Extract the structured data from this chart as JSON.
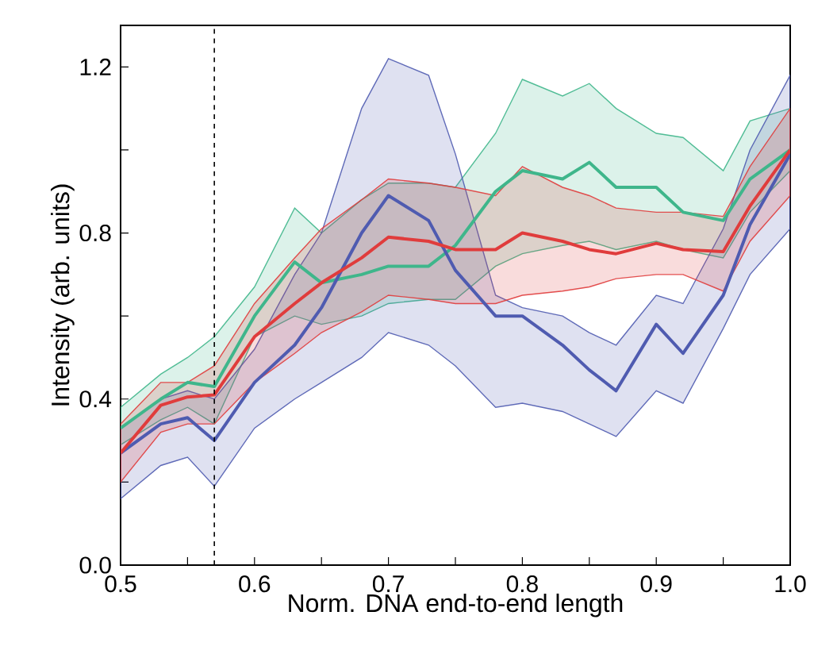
{
  "chart_data": {
    "type": "line",
    "xlabel": "Norm. DNA end-to-end length",
    "ylabel": "Intensity (arb. units)",
    "x": [
      0.5,
      0.53,
      0.55,
      0.57,
      0.6,
      0.63,
      0.65,
      0.68,
      0.7,
      0.73,
      0.75,
      0.78,
      0.8,
      0.83,
      0.85,
      0.87,
      0.9,
      0.92,
      0.95,
      0.97,
      1.0
    ],
    "series": [
      {
        "color": "#3fb68b",
        "values": [
          0.33,
          0.4,
          0.44,
          0.43,
          0.6,
          0.73,
          0.68,
          0.7,
          0.72,
          0.72,
          0.77,
          0.9,
          0.95,
          0.93,
          0.97,
          0.91,
          0.91,
          0.85,
          0.83,
          0.93,
          1.0
        ],
        "upper": [
          0.38,
          0.46,
          0.5,
          0.55,
          0.67,
          0.86,
          0.8,
          0.88,
          0.92,
          0.92,
          0.91,
          1.04,
          1.17,
          1.13,
          1.16,
          1.1,
          1.04,
          1.03,
          0.95,
          1.07,
          1.1
        ],
        "lower": [
          0.29,
          0.35,
          0.38,
          0.34,
          0.55,
          0.6,
          0.58,
          0.6,
          0.63,
          0.64,
          0.64,
          0.72,
          0.75,
          0.77,
          0.78,
          0.76,
          0.78,
          0.76,
          0.74,
          0.85,
          0.95
        ]
      },
      {
        "color": "#4f5bb0",
        "values": [
          0.27,
          0.34,
          0.355,
          0.3,
          0.44,
          0.53,
          0.62,
          0.8,
          0.89,
          0.83,
          0.71,
          0.6,
          0.6,
          0.53,
          0.47,
          0.42,
          0.58,
          0.51,
          0.65,
          0.82,
          0.99
        ],
        "upper": [
          0.33,
          0.4,
          0.42,
          0.4,
          0.52,
          0.7,
          0.8,
          1.1,
          1.22,
          1.18,
          0.99,
          0.65,
          0.62,
          0.6,
          0.56,
          0.53,
          0.65,
          0.63,
          0.81,
          1.0,
          1.18
        ],
        "lower": [
          0.16,
          0.24,
          0.26,
          0.19,
          0.33,
          0.4,
          0.44,
          0.5,
          0.56,
          0.53,
          0.48,
          0.38,
          0.39,
          0.37,
          0.34,
          0.31,
          0.42,
          0.39,
          0.57,
          0.7,
          0.81
        ]
      },
      {
        "color": "#e03c3c",
        "values": [
          0.27,
          0.385,
          0.405,
          0.41,
          0.55,
          0.63,
          0.68,
          0.74,
          0.79,
          0.78,
          0.76,
          0.76,
          0.8,
          0.78,
          0.76,
          0.75,
          0.775,
          0.76,
          0.755,
          0.865,
          1.0
        ],
        "upper": [
          0.34,
          0.44,
          0.44,
          0.48,
          0.63,
          0.74,
          0.81,
          0.88,
          0.93,
          0.92,
          0.91,
          0.89,
          0.96,
          0.91,
          0.89,
          0.86,
          0.85,
          0.85,
          0.84,
          0.96,
          1.1
        ],
        "lower": [
          0.2,
          0.32,
          0.34,
          0.34,
          0.44,
          0.51,
          0.56,
          0.61,
          0.65,
          0.64,
          0.63,
          0.63,
          0.65,
          0.66,
          0.67,
          0.69,
          0.7,
          0.7,
          0.66,
          0.78,
          0.89
        ]
      }
    ],
    "xlim": [
      0.5,
      1.0
    ],
    "ylim": [
      0,
      1.3
    ],
    "xticks": [
      {
        "value": 0.5,
        "label": "0.5"
      },
      {
        "value": 0.55,
        "label": null
      },
      {
        "value": 0.6,
        "label": "0.6"
      },
      {
        "value": 0.65,
        "label": null
      },
      {
        "value": 0.7,
        "label": "0.7"
      },
      {
        "value": 0.75,
        "label": null
      },
      {
        "value": 0.8,
        "label": "0.8"
      },
      {
        "value": 0.85,
        "label": null
      },
      {
        "value": 0.9,
        "label": "0.9"
      },
      {
        "value": 0.95,
        "label": null
      },
      {
        "value": 1.0,
        "label": "1.0"
      }
    ],
    "yticks": [
      {
        "value": 0,
        "label": "0.0"
      },
      {
        "value": 0.2,
        "label": null
      },
      {
        "value": 0.4,
        "label": "0.4"
      },
      {
        "value": 0.6,
        "label": null
      },
      {
        "value": 0.8,
        "label": "0.8"
      },
      {
        "value": 1.0,
        "label": null
      },
      {
        "value": 1.2,
        "label": "1.2"
      }
    ],
    "ref_lines": [
      {
        "axis": "x",
        "value": 0.57,
        "color": "#000000",
        "line_style": "dashed"
      }
    ],
    "marker": "none",
    "line_style": "solid"
  }
}
